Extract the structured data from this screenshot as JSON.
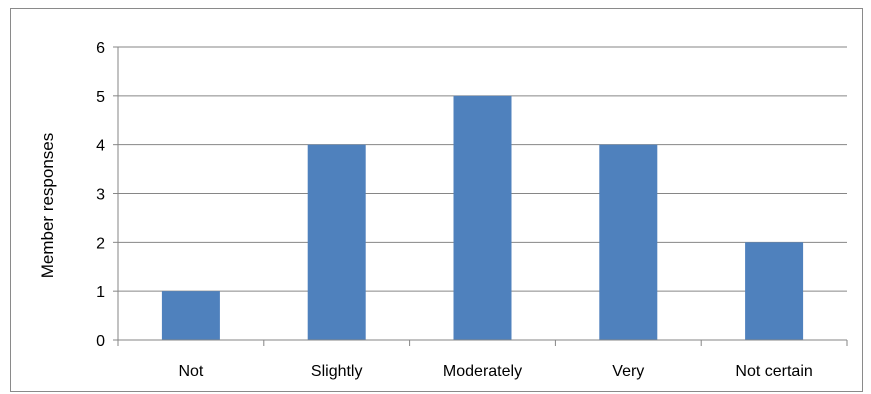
{
  "chart_data": {
    "type": "bar",
    "categories": [
      "Not",
      "Slightly",
      "Moderately",
      "Very",
      "Not certain"
    ],
    "values": [
      1,
      4,
      5,
      4,
      2
    ],
    "title": "",
    "xlabel": "",
    "ylabel": "Member responses",
    "ylim": [
      0,
      6
    ],
    "yticks": [
      0,
      1,
      2,
      3,
      4,
      5,
      6
    ],
    "grid": true,
    "legend": "none",
    "colors": {
      "bar": "#4f81bd",
      "gridline": "#868686",
      "axis": "#868686"
    }
  }
}
